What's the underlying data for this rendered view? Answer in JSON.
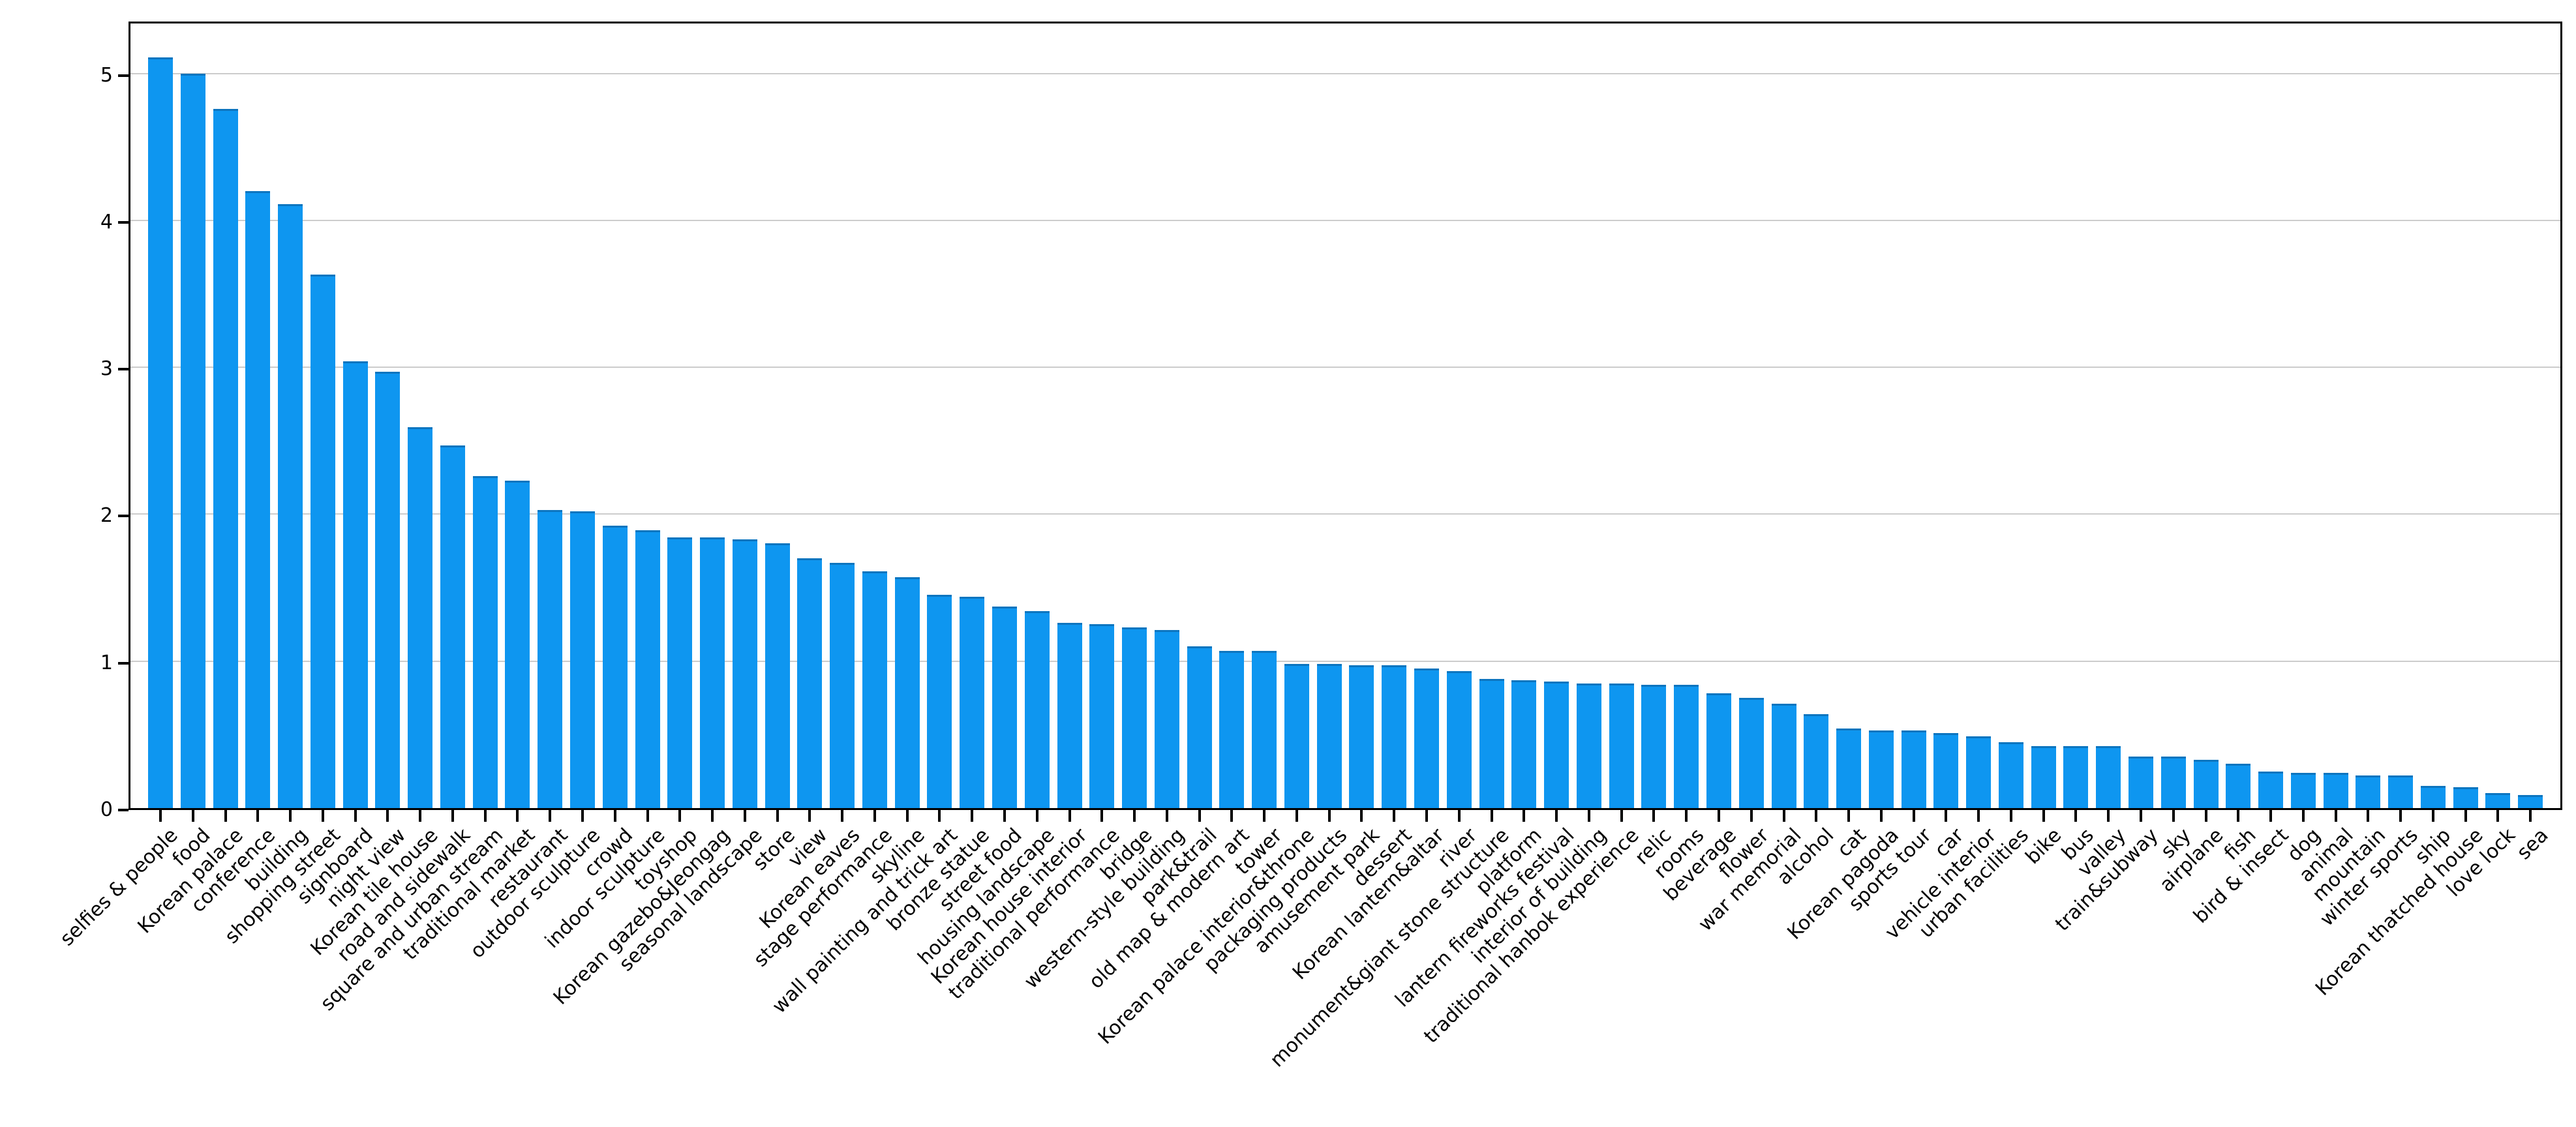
{
  "chart_data": {
    "type": "bar",
    "title": "",
    "xlabel": "",
    "ylabel": "",
    "categories": [
      "selfies & people",
      "food",
      "Korean palace",
      "conference",
      "building",
      "shopping street",
      "signboard",
      "night view",
      "Korean tile house",
      "road and sidewalk",
      "square and urban stream",
      "traditional market",
      "restaurant",
      "outdoor sculpture",
      "crowd",
      "indoor sculpture",
      "toyshop",
      "Korean gazebo&Jeongag",
      "seasonal landscape",
      "store",
      "view",
      "Korean eaves",
      "stage performance",
      "skyline",
      "wall painting and trick art",
      "bronze statue",
      "street food",
      "housing landscape",
      "Korean house interior",
      "traditional performance",
      "bridge",
      "western-style building",
      "park&trail",
      "old map & modern art",
      "tower",
      "Korean palace interior&throne",
      "packaging products",
      "amusement park",
      "dessert",
      "Korean lantern&altar",
      "river",
      "monument&giant stone structure",
      "platform",
      "lantern fireworks festival",
      "interior of building",
      "traditional hanbok experience",
      "relic",
      "rooms",
      "beverage",
      "flower",
      "war memorial",
      "alcohol",
      "cat",
      "Korean pagoda",
      "sports tour",
      "car",
      "vehicle interior",
      "urban facilities",
      "bike",
      "bus",
      "valley",
      "train&subway",
      "sky",
      "airplane",
      "fish",
      "bird & insect",
      "dog",
      "animal",
      "mountain",
      "winter sports",
      "ship",
      "Korean thatched house",
      "love lock",
      "sea"
    ],
    "values": [
      5.11,
      5.0,
      4.76,
      4.2,
      4.11,
      3.63,
      3.04,
      2.97,
      2.59,
      2.47,
      2.26,
      2.23,
      2.03,
      2.02,
      1.92,
      1.89,
      1.84,
      1.84,
      1.83,
      1.8,
      1.7,
      1.67,
      1.61,
      1.57,
      1.45,
      1.44,
      1.37,
      1.34,
      1.26,
      1.25,
      1.23,
      1.21,
      1.1,
      1.07,
      1.07,
      0.98,
      0.98,
      0.97,
      0.97,
      0.95,
      0.93,
      0.88,
      0.87,
      0.86,
      0.85,
      0.85,
      0.84,
      0.84,
      0.78,
      0.75,
      0.71,
      0.64,
      0.54,
      0.53,
      0.53,
      0.51,
      0.49,
      0.45,
      0.42,
      0.42,
      0.42,
      0.35,
      0.35,
      0.33,
      0.3,
      0.25,
      0.24,
      0.24,
      0.22,
      0.22,
      0.15,
      0.14,
      0.1,
      0.09
    ],
    "y_ticks": [
      "0",
      "1",
      "2",
      "3",
      "4",
      "5"
    ],
    "ylim": [
      0,
      5.37
    ],
    "bar_color": "#0e96f0",
    "grid_color": "#cccccc",
    "grid": "horizontal",
    "legend": {
      "position": "upper right",
      "entries": []
    }
  }
}
